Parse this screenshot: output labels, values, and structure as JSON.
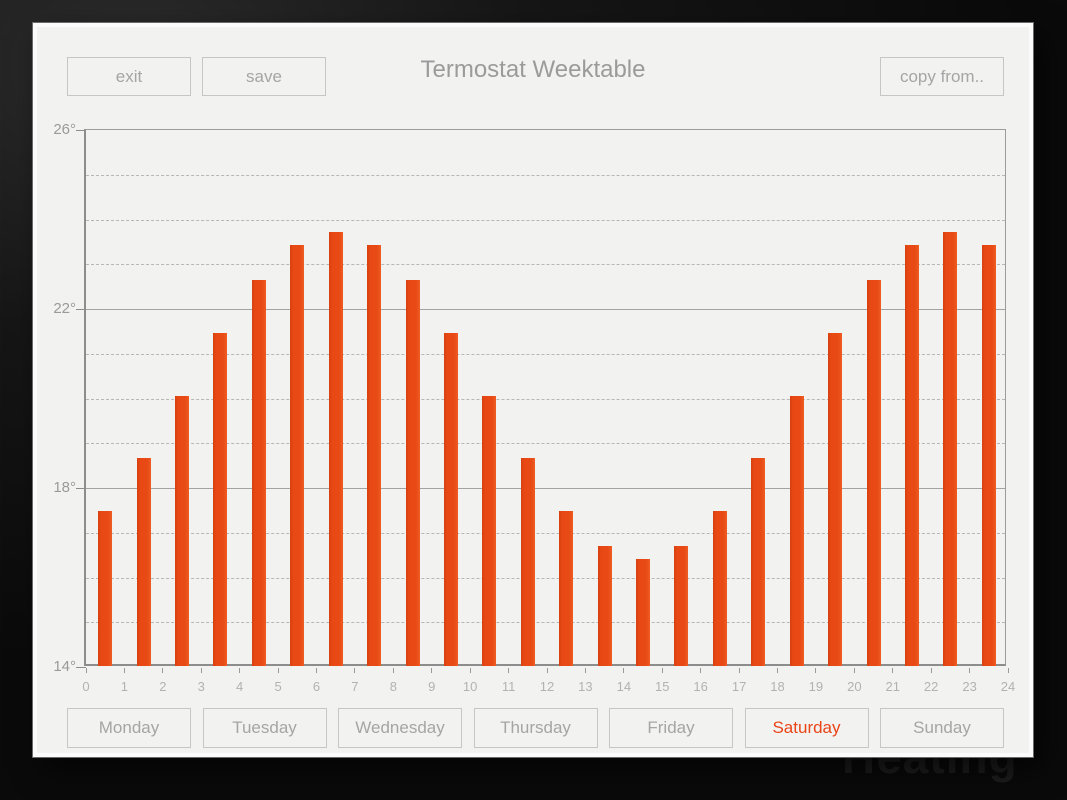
{
  "window": {
    "title": "Termostat Weektable",
    "background_watermark": "Heating"
  },
  "toolbar": {
    "exit_label": "exit",
    "save_label": "save",
    "copy_from_label": "copy from.."
  },
  "colors": {
    "bar": "#e8481a",
    "selected_day_text": "#ea4517",
    "panel_background": "#f2f2f1",
    "backdrop": "#111111",
    "muted_text": "#a5a5a5",
    "grid_solid": "#a3a3a3",
    "grid_dashed": "#b7b7b7"
  },
  "chart_data": {
    "type": "bar",
    "title": "Termostat Weektable",
    "xlabel": "",
    "ylabel": "",
    "ylim": [
      14,
      26
    ],
    "xlim": [
      0,
      24
    ],
    "grid": "dashed line each 1 degree, solid lines at 18 and 22, box border",
    "legend_position": "none",
    "bar_color": "#e8481a",
    "hours": [
      0,
      1,
      2,
      3,
      4,
      5,
      6,
      7,
      8,
      9,
      10,
      11,
      12,
      13,
      14,
      15,
      16,
      17,
      18,
      19,
      20,
      21,
      22,
      23
    ],
    "values": [
      17.42,
      18.6,
      20.0,
      21.4,
      22.58,
      23.37,
      23.65,
      23.37,
      22.58,
      21.4,
      20.0,
      18.6,
      17.42,
      16.63,
      16.35,
      16.63,
      17.42,
      18.6,
      20.0,
      21.4,
      22.58,
      23.37,
      23.65,
      23.37
    ],
    "x_tick_labels": [
      "0",
      "1",
      "2",
      "3",
      "4",
      "5",
      "6",
      "7",
      "8",
      "9",
      "10",
      "11",
      "12",
      "13",
      "14",
      "15",
      "16",
      "17",
      "18",
      "19",
      "20",
      "21",
      "22",
      "23",
      "24"
    ],
    "y_tick_labels": [
      {
        "value": 26,
        "label": "26°"
      },
      {
        "value": 22,
        "label": "22°"
      },
      {
        "value": 18,
        "label": "18°"
      },
      {
        "value": 14,
        "label": "14°"
      }
    ],
    "solid_gridlines": [
      18,
      22
    ],
    "dashed_gridlines": [
      15,
      16,
      17,
      19,
      20,
      21,
      23,
      24,
      25
    ]
  },
  "days": {
    "items": [
      {
        "label": "Monday",
        "selected": false
      },
      {
        "label": "Tuesday",
        "selected": false
      },
      {
        "label": "Wednesday",
        "selected": false
      },
      {
        "label": "Thursday",
        "selected": false
      },
      {
        "label": "Friday",
        "selected": false
      },
      {
        "label": "Saturday",
        "selected": true
      },
      {
        "label": "Sunday",
        "selected": false
      }
    ]
  }
}
